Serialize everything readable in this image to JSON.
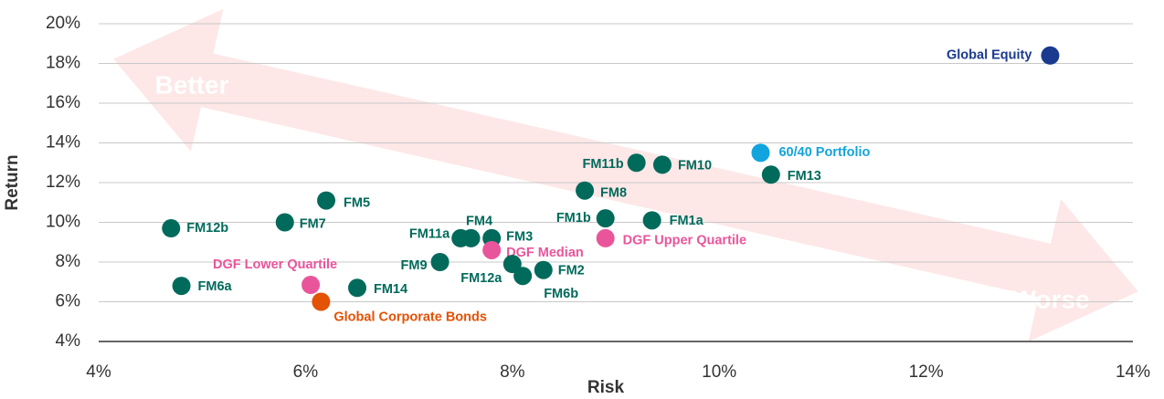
{
  "chart_data": {
    "type": "scatter",
    "xlabel": "Risk",
    "ylabel": "Return",
    "annotations": [
      "Better",
      "Worse"
    ],
    "labels": [
      "Global Equity",
      "60/40 Portfolio",
      "FM13",
      "FM11b",
      "FM10",
      "FM8",
      "FM1b",
      "FM1a",
      "FM5",
      "FM7",
      "FM12b",
      "FM11a",
      "FM4",
      "FM3",
      "DGF Median",
      "DGF Upper Quartile",
      "FM9",
      "FM12a",
      "FM6b",
      "FM2",
      "DGF Lower Quartile",
      "FM6a",
      "FM14",
      "Global Corporate Bonds"
    ],
    "x": [
      13.2,
      10.4,
      10.5,
      9.2,
      9.45,
      8.7,
      8.9,
      9.35,
      6.2,
      5.8,
      4.7,
      7.5,
      7.6,
      7.8,
      7.8,
      8.9,
      7.3,
      8.0,
      8.1,
      8.3,
      6.05,
      4.8,
      6.5,
      6.15
    ],
    "y": [
      18.4,
      13.5,
      12.4,
      13.0,
      12.9,
      11.6,
      10.2,
      10.1,
      11.1,
      10.0,
      9.7,
      9.2,
      9.2,
      9.2,
      8.6,
      9.2,
      8.0,
      7.9,
      7.3,
      7.6,
      6.85,
      6.8,
      6.7,
      6.0
    ],
    "colors": [
      "#1a3a8f",
      "#12a4dd",
      "#006a5b",
      "#006a5b",
      "#006a5b",
      "#006a5b",
      "#006a5b",
      "#006a5b",
      "#006a5b",
      "#006a5b",
      "#006a5b",
      "#006a5b",
      "#006a5b",
      "#006a5b",
      "#e9559b",
      "#e9559b",
      "#006a5b",
      "#006a5b",
      "#006a5b",
      "#006a5b",
      "#e9559b",
      "#006a5b",
      "#006a5b",
      "#e35205"
    ],
    "xlim": [
      4,
      14
    ],
    "xticks": [
      {
        "value": 4,
        "label": "4%"
      },
      {
        "value": 6,
        "label": "6%"
      },
      {
        "value": 8,
        "label": "8%"
      },
      {
        "value": 10,
        "label": "10%"
      },
      {
        "value": 12,
        "label": "12%"
      },
      {
        "value": 14,
        "label": "14%"
      }
    ],
    "ylim": [
      4,
      20
    ],
    "yticks": [
      {
        "value": 4,
        "label": "4%"
      },
      {
        "value": 6,
        "label": "6%"
      },
      {
        "value": 8,
        "label": "8%"
      },
      {
        "value": 10,
        "label": "10%"
      },
      {
        "value": 12,
        "label": "12%"
      },
      {
        "value": 14,
        "label": "14%"
      },
      {
        "value": 16,
        "label": "16%"
      },
      {
        "value": 18,
        "label": "18%"
      },
      {
        "value": 20,
        "label": "20%"
      }
    ],
    "grid": true
  }
}
